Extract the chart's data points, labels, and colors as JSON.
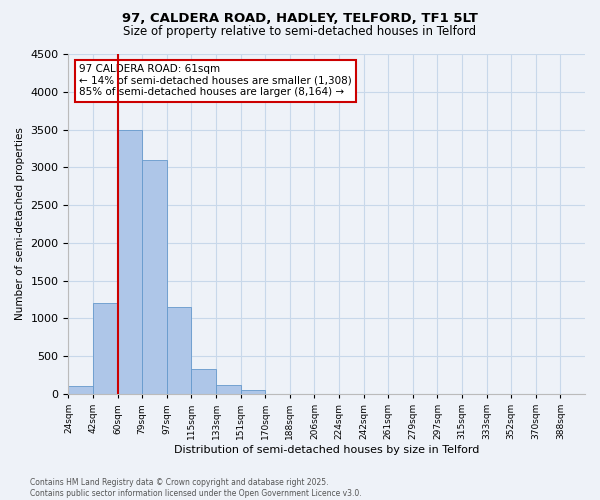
{
  "title_line1": "97, CALDERA ROAD, HADLEY, TELFORD, TF1 5LT",
  "title_line2": "Size of property relative to semi-detached houses in Telford",
  "xlabel": "Distribution of semi-detached houses by size in Telford",
  "ylabel": "Number of semi-detached properties",
  "annotation_title": "97 CALDERA ROAD: 61sqm",
  "annotation_line1": "← 14% of semi-detached houses are smaller (1,308)",
  "annotation_line2": "85% of semi-detached houses are larger (8,164) →",
  "footer_line1": "Contains HM Land Registry data © Crown copyright and database right 2025.",
  "footer_line2": "Contains public sector information licensed under the Open Government Licence v3.0.",
  "bin_labels": [
    "24sqm",
    "42sqm",
    "60sqm",
    "79sqm",
    "97sqm",
    "115sqm",
    "133sqm",
    "151sqm",
    "170sqm",
    "188sqm",
    "206sqm",
    "224sqm",
    "242sqm",
    "261sqm",
    "279sqm",
    "297sqm",
    "315sqm",
    "333sqm",
    "352sqm",
    "370sqm",
    "388sqm"
  ],
  "bar_heights": [
    100,
    1200,
    3500,
    3100,
    1150,
    330,
    120,
    50,
    0,
    0,
    0,
    0,
    0,
    0,
    0,
    0,
    0,
    0,
    0,
    0,
    0
  ],
  "bar_color": "#aec6e8",
  "bar_edge_color": "#6699cc",
  "vline_bin": 2,
  "vline_color": "#cc0000",
  "annotation_box_color": "#cc0000",
  "background_color": "#eef2f8",
  "grid_color": "#c8d8ea",
  "ylim": [
    0,
    4500
  ],
  "yticks": [
    0,
    500,
    1000,
    1500,
    2000,
    2500,
    3000,
    3500,
    4000,
    4500
  ]
}
